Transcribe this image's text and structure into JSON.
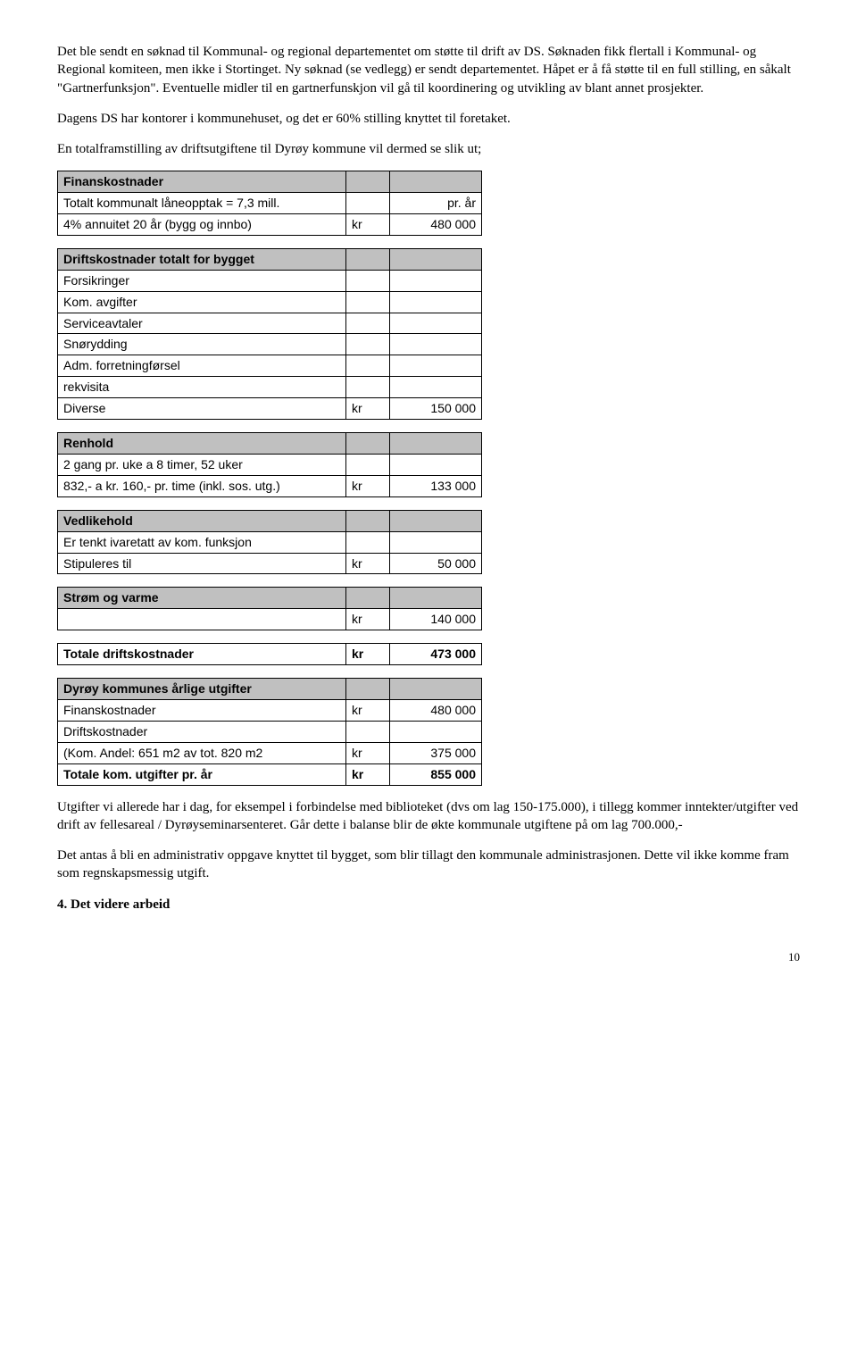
{
  "paragraphs": {
    "p1": "Det ble sendt en søknad til Kommunal- og regional departementet om støtte til drift av DS. Søknaden fikk flertall i Kommunal- og Regional komiteen, men ikke i Stortinget. Ny søknad (se vedlegg) er sendt departementet. Håpet er å få støtte til en full stilling, en såkalt \"Gartnerfunksjon\". Eventuelle midler til en gartnerfunskjon vil gå til koordinering og utvikling av blant annet prosjekter.",
    "p2": "Dagens DS har kontorer i kommunehuset, og det er 60% stilling knyttet til foretaket.",
    "p3": "En totalframstilling av driftsutgiftene til Dyrøy kommune vil dermed se slik ut;",
    "p4": "Utgifter vi allerede har i dag, for eksempel i forbindelse med biblioteket (dvs om lag 150-175.000), i tillegg kommer inntekter/utgifter ved drift av fellesareal / Dyrøyseminarsenteret. Går dette i balanse blir de økte kommunale utgiftene på om lag 700.000,-",
    "p5": "Det antas å bli en administrativ oppgave knyttet til bygget, som blir tillagt den kommunale administrasjonen. Dette vil ikke komme fram som regnskapsmessig utgift."
  },
  "tables": {
    "finans": {
      "header": "Finanskostnader",
      "rows": [
        {
          "a": "Totalt kommunalt låneopptak = 7,3 mill.",
          "b": "",
          "c": "pr. år"
        },
        {
          "a": "4% annuitet 20 år (bygg og innbo)",
          "b": "kr",
          "c": "480 000"
        }
      ]
    },
    "drift": {
      "header": "Driftskostnader totalt for bygget",
      "rows": [
        {
          "a": "Forsikringer",
          "b": "",
          "c": ""
        },
        {
          "a": "Kom. avgifter",
          "b": "",
          "c": ""
        },
        {
          "a": "Serviceavtaler",
          "b": "",
          "c": ""
        },
        {
          "a": "Snørydding",
          "b": "",
          "c": ""
        },
        {
          "a": "Adm. forretningførsel",
          "b": "",
          "c": ""
        },
        {
          "a": "rekvisita",
          "b": "",
          "c": ""
        },
        {
          "a": "Diverse",
          "b": "kr",
          "c": "150 000"
        }
      ]
    },
    "renhold": {
      "header": "Renhold",
      "rows": [
        {
          "a": "2 gang pr. uke a 8 timer, 52 uker",
          "b": "",
          "c": ""
        },
        {
          "a": "832,- a kr. 160,- pr. time (inkl. sos. utg.)",
          "b": "kr",
          "c": "133 000"
        }
      ]
    },
    "vedlikehold": {
      "header": "Vedlikehold",
      "rows": [
        {
          "a": "Er tenkt ivaretatt av kom. funksjon",
          "b": "",
          "c": ""
        },
        {
          "a": "Stipuleres til",
          "b": "kr",
          "c": "50 000"
        }
      ]
    },
    "strom": {
      "header": "Strøm og varme",
      "rows": [
        {
          "a": "",
          "b": "kr",
          "c": "140 000"
        }
      ]
    },
    "total": {
      "rows": [
        {
          "a": "Totale driftskostnader",
          "b": "kr",
          "c": "473 000"
        }
      ]
    },
    "aarlig": {
      "header": "Dyrøy kommunes årlige utgifter",
      "rows": [
        {
          "a": "Finanskostnader",
          "b": "kr",
          "c": "480 000"
        },
        {
          "a": "Driftskostnader",
          "b": "",
          "c": ""
        },
        {
          "a": "(Kom. Andel: 651 m2 av tot. 820 m2",
          "b": "kr",
          "c": "375 000"
        },
        {
          "a": "Totale kom. utgifter pr. år",
          "b": "kr",
          "c": "855 000",
          "bold": true
        }
      ]
    }
  },
  "heading4": "4. Det videre arbeid",
  "pagenum": "10"
}
